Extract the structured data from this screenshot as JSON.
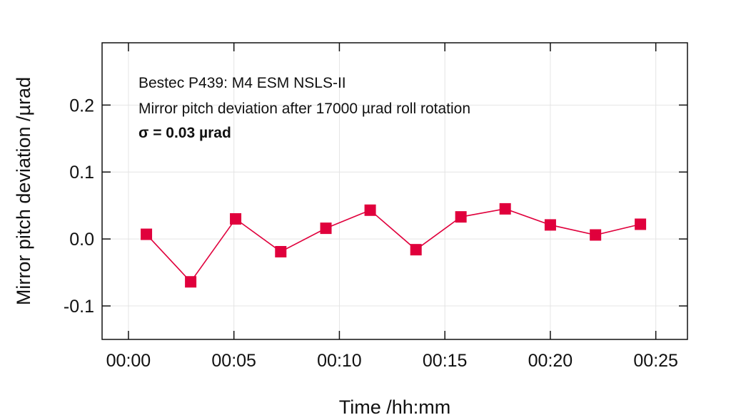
{
  "chart_data": {
    "type": "line",
    "title": "",
    "annotations": [
      "Bestec P439: M4 ESM NSLS-II",
      "Mirror pitch deviation after 17000 µrad roll rotation",
      "σ = 0.03 µrad"
    ],
    "xlabel": "Time /hh:mm",
    "ylabel": "Mirror pitch deviation /µrad",
    "xlim": [
      -1.25,
      26.5
    ],
    "ylim": [
      -0.15,
      0.293
    ],
    "xticks": [
      0,
      5,
      10,
      15,
      20,
      25
    ],
    "xtick_labels": [
      "00:00",
      "00:05",
      "00:10",
      "00:15",
      "00:20",
      "00:25"
    ],
    "yticks": [
      0.2,
      0.1,
      0.0,
      -0.1
    ],
    "ytick_labels": [
      "0.2",
      "0.1",
      "0.0",
      "-0.1"
    ],
    "grid": true,
    "series": [
      {
        "name": "pitch deviation",
        "color": "#e0003c",
        "marker": "square",
        "x": [
          0.85,
          2.95,
          5.08,
          7.22,
          9.36,
          11.46,
          13.63,
          15.76,
          17.86,
          20.0,
          22.14,
          24.27
        ],
        "y": [
          0.007,
          -0.064,
          0.03,
          -0.019,
          0.016,
          0.043,
          -0.016,
          0.033,
          0.045,
          0.021,
          0.006,
          0.022
        ]
      }
    ]
  }
}
